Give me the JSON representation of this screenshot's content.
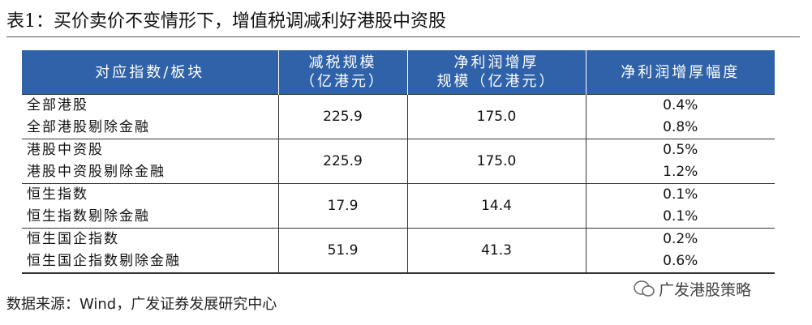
{
  "title": "表1：买价卖价不变情形下，增值税调减利好港股中资股",
  "table": {
    "headers": [
      [
        "对应指数/板块"
      ],
      [
        "减税规模",
        "（亿港元）"
      ],
      [
        "净利润增厚",
        "规模（亿港元）"
      ],
      [
        "净利润增厚幅度"
      ]
    ],
    "groups": [
      {
        "names": [
          "全部港股",
          "全部港股剔除金融"
        ],
        "tax_cut": "225.9",
        "profit": "175.0",
        "pct": [
          "0.4%",
          "0.8%"
        ]
      },
      {
        "names": [
          "港股中资股",
          "港股中资股剔除金融"
        ],
        "tax_cut": "225.9",
        "profit": "175.0",
        "pct": [
          "0.5%",
          "1.2%"
        ]
      },
      {
        "names": [
          "恒生指数",
          "恒生指数剔除金融"
        ],
        "tax_cut": "17.9",
        "profit": "14.4",
        "pct": [
          "0.1%",
          "0.1%"
        ]
      },
      {
        "names": [
          "恒生国企指数",
          "恒生国企指数剔除金融"
        ],
        "tax_cut": "51.9",
        "profit": "41.3",
        "pct": [
          "0.2%",
          "0.6%"
        ]
      }
    ]
  },
  "source": "数据来源：Wind，广发证券发展研究中心",
  "watermark": "广发港股策略"
}
